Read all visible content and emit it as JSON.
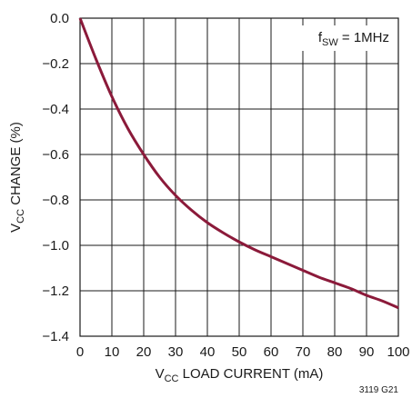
{
  "chart_data": {
    "type": "line",
    "xlabel": {
      "main": "V",
      "sub": "CC",
      "rest": " LOAD CURRENT (mA)"
    },
    "ylabel": {
      "main": "V",
      "sub": "CC",
      "rest": " CHANGE (%)"
    },
    "xlim": [
      0,
      100
    ],
    "ylim": [
      -1.4,
      0.0
    ],
    "x_ticks": [
      0,
      10,
      20,
      30,
      40,
      50,
      60,
      70,
      80,
      90,
      100
    ],
    "y_ticks": [
      0.0,
      -0.2,
      -0.4,
      -0.6,
      -0.8,
      -1.0,
      -1.2,
      -1.4
    ],
    "grid": true,
    "annotation": {
      "main": "f",
      "sub": "SW",
      "rest": " = 1MHz"
    },
    "figure_id": "3119 G21",
    "line_color": "#8b1a3a",
    "series": [
      {
        "x": [
          0,
          5,
          10,
          15,
          20,
          25,
          30,
          35,
          40,
          45,
          50,
          55,
          60,
          65,
          70,
          75,
          80,
          85,
          90,
          95,
          100
        ],
        "values": [
          0.0,
          -0.18,
          -0.345,
          -0.485,
          -0.6,
          -0.7,
          -0.78,
          -0.845,
          -0.9,
          -0.945,
          -0.985,
          -1.02,
          -1.05,
          -1.08,
          -1.11,
          -1.14,
          -1.165,
          -1.19,
          -1.22,
          -1.245,
          -1.275
        ]
      }
    ]
  }
}
